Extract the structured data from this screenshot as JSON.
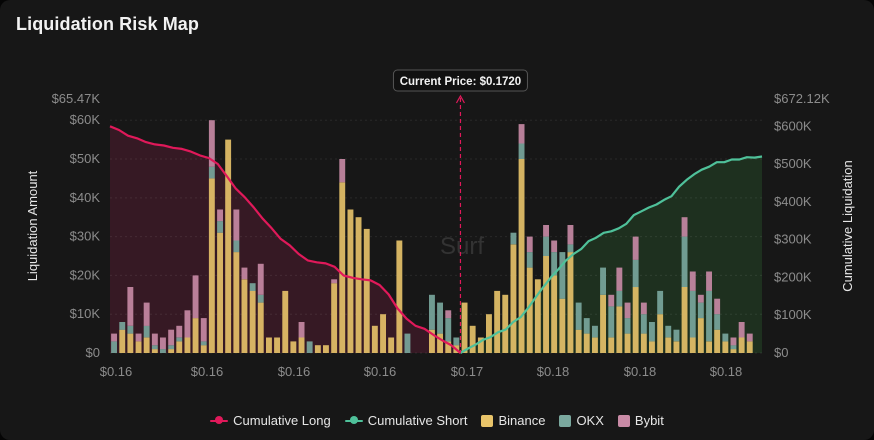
{
  "header": {
    "title": "Liquidation Risk Map"
  },
  "colors": {
    "long": "#e0195a",
    "short": "#4fc19a",
    "binance": "#e9c46a",
    "okx": "#7aa89e",
    "bybit": "#c98ba6",
    "longFill": "#3a1a26",
    "shortFill": "#1f3320"
  },
  "legend": [
    {
      "label": "Cumulative Long",
      "kind": "line",
      "color": "#e0195a"
    },
    {
      "label": "Cumulative Short",
      "kind": "line",
      "color": "#4fc19a"
    },
    {
      "label": "Binance",
      "kind": "box",
      "color": "#e9c46a"
    },
    {
      "label": "OKX",
      "kind": "box",
      "color": "#7aa89e"
    },
    {
      "label": "Bybit",
      "kind": "box",
      "color": "#c98ba6"
    }
  ],
  "watermark": "Surf",
  "chart_data": {
    "type": "bar",
    "title": "Liquidation Risk Map",
    "ylabel": "Liquidation Amount",
    "y2label": "Cumulative Liquidation",
    "ylim": [
      0,
      65470
    ],
    "y2lim": [
      0,
      672120
    ],
    "y_ticks": [
      "$0",
      "$10K",
      "$20K",
      "$30K",
      "$40K",
      "$50K",
      "$60K"
    ],
    "y_top_label": "$65.47K",
    "y2_ticks": [
      "$0",
      "$100K",
      "$200K",
      "$300K",
      "$400K",
      "$500K",
      "$600K"
    ],
    "y2_top_label": "$672.12K",
    "x_ticks": [
      "$0.16",
      "$0.16",
      "$0.16",
      "$0.16",
      "$0.17",
      "$0.18",
      "$0.18",
      "$0.18"
    ],
    "current_price_label": "Current Price: $0.1720",
    "current_price_index": 42.5,
    "series": [
      {
        "name": "Binance",
        "stack": [
          0,
          6,
          5,
          3,
          4,
          1,
          0,
          1,
          3,
          4,
          9,
          2,
          45,
          31,
          55,
          26,
          19,
          16,
          13,
          4,
          4,
          16,
          3,
          4,
          0,
          2,
          2,
          18,
          44,
          37,
          35,
          32,
          7,
          10,
          4,
          29,
          0,
          0,
          0,
          6,
          5,
          3,
          2,
          13,
          7,
          4,
          10,
          16,
          15,
          28,
          50,
          22,
          19,
          25,
          20,
          14,
          26,
          6,
          5,
          4,
          15,
          4,
          12,
          5,
          17,
          5,
          3,
          10,
          4,
          3,
          17,
          4,
          9,
          3,
          6,
          3,
          1,
          4,
          3,
          0
        ]
      },
      {
        "name": "OKX",
        "stack": [
          3,
          2,
          2,
          0,
          3,
          1,
          1,
          1,
          1,
          0,
          0,
          1,
          3,
          3,
          0,
          3,
          0,
          2,
          2,
          0,
          0,
          0,
          0,
          0,
          3,
          0,
          0,
          0,
          0,
          0,
          0,
          0,
          0,
          0,
          0,
          0,
          5,
          0,
          0,
          9,
          8,
          6,
          2,
          0,
          0,
          0,
          0,
          0,
          0,
          3,
          4,
          4,
          0,
          5,
          6,
          12,
          2,
          7,
          4,
          3,
          7,
          8,
          4,
          4,
          7,
          5,
          5,
          6,
          3,
          3,
          13,
          12,
          4,
          13,
          4,
          2,
          1,
          0,
          0,
          0
        ]
      },
      {
        "name": "Bybit",
        "stack": [
          2,
          0,
          10,
          2,
          6,
          3,
          3,
          4,
          3,
          7,
          11,
          6,
          12,
          3,
          0,
          8,
          3,
          0,
          8,
          0,
          0,
          0,
          0,
          4,
          0,
          0,
          0,
          1,
          6,
          0,
          0,
          0,
          0,
          0,
          0,
          0,
          0,
          0,
          0,
          0,
          0,
          2,
          0,
          0,
          0,
          0,
          0,
          0,
          0,
          0,
          5,
          4,
          0,
          3,
          3,
          0,
          5,
          0,
          0,
          0,
          0,
          3,
          6,
          4,
          6,
          3,
          0,
          0,
          0,
          0,
          5,
          5,
          2,
          5,
          4,
          0,
          2,
          4,
          2,
          0
        ]
      }
    ],
    "cumulative_long": [
      600,
      590,
      575,
      568,
      558,
      552,
      549,
      543,
      540,
      533,
      523,
      516,
      500,
      468,
      435,
      412,
      385,
      355,
      330,
      302,
      285,
      262,
      245,
      240,
      237,
      228,
      205,
      199,
      195,
      192,
      180,
      155,
      118,
      91,
      72,
      64,
      48,
      33,
      20,
      0
    ],
    "cumulative_short": [
      0,
      0,
      0,
      0,
      0,
      0,
      0,
      0,
      0,
      0,
      0,
      0,
      0,
      0,
      0,
      0,
      0,
      0,
      0,
      0,
      0,
      0,
      0,
      0,
      0,
      0,
      0,
      0,
      0,
      0,
      0,
      0,
      0,
      0,
      0,
      0,
      0,
      0,
      0,
      0,
      0,
      12,
      22,
      35,
      42,
      55,
      62,
      82,
      95,
      120,
      148,
      175,
      200,
      222,
      245,
      262,
      275,
      296,
      305,
      318,
      322,
      330,
      342,
      365,
      375,
      385,
      393,
      405,
      415,
      440,
      458,
      473,
      485,
      493,
      505,
      505,
      512,
      512,
      518,
      517,
      520
    ]
  }
}
